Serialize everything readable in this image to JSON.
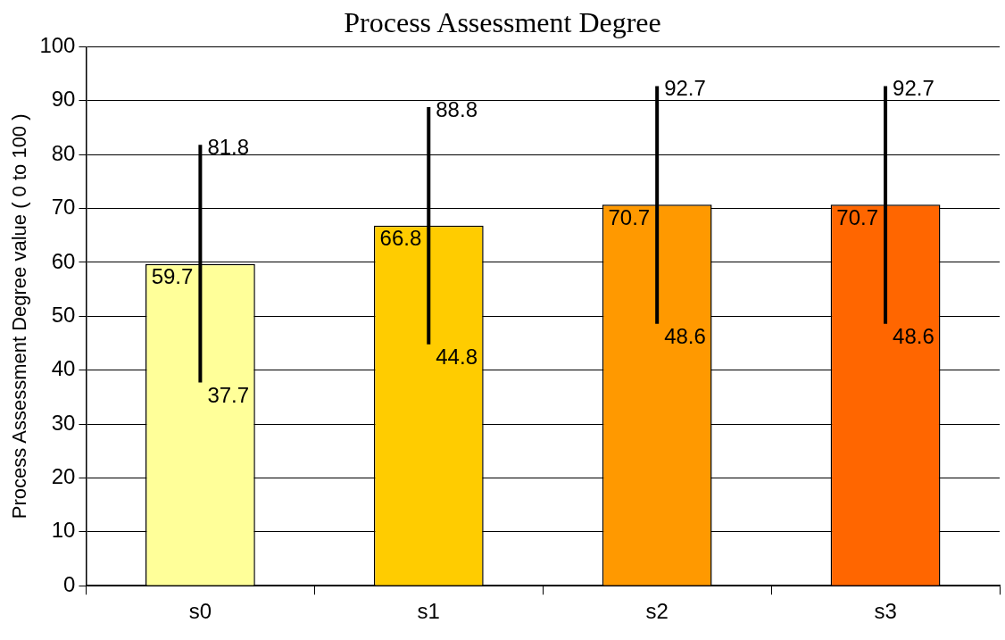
{
  "chart_data": {
    "type": "bar",
    "title": "Process Assessment Degree",
    "ylabel": "Process Assessment Degree value ( 0 to 100 )",
    "categories": [
      "s0",
      "s1",
      "s2",
      "s3"
    ],
    "values": [
      59.7,
      66.8,
      70.7,
      70.7
    ],
    "colors": [
      "#ffff99",
      "#ffcc00",
      "#ff9900",
      "#ff6600"
    ],
    "errors": [
      [
        37.7,
        81.8
      ],
      [
        44.8,
        88.8
      ],
      [
        48.6,
        92.7
      ],
      [
        48.6,
        92.7
      ]
    ],
    "annotations": [
      {
        "text": "81.8",
        "x": "s0",
        "y": 81.8
      },
      {
        "text": "37.7",
        "x": "s0",
        "y": 37.7
      },
      {
        "text": "88.8",
        "x": "s1",
        "y": 88.8
      },
      {
        "text": "44.8",
        "x": "s1",
        "y": 44.8
      },
      {
        "text": "92.7",
        "x": "s2",
        "y": 92.7
      },
      {
        "text": "48.6",
        "x": "s2",
        "y": 48.6
      },
      {
        "text": "92.7",
        "x": "s3",
        "y": 92.7
      },
      {
        "text": "48.6",
        "x": "s3",
        "y": 48.6
      }
    ],
    "data_labels": true,
    "ylim": [
      0,
      100
    ],
    "yticks": [
      0,
      10,
      20,
      30,
      40,
      50,
      60,
      70,
      80,
      90,
      100
    ],
    "grid": "y",
    "legend": false
  }
}
